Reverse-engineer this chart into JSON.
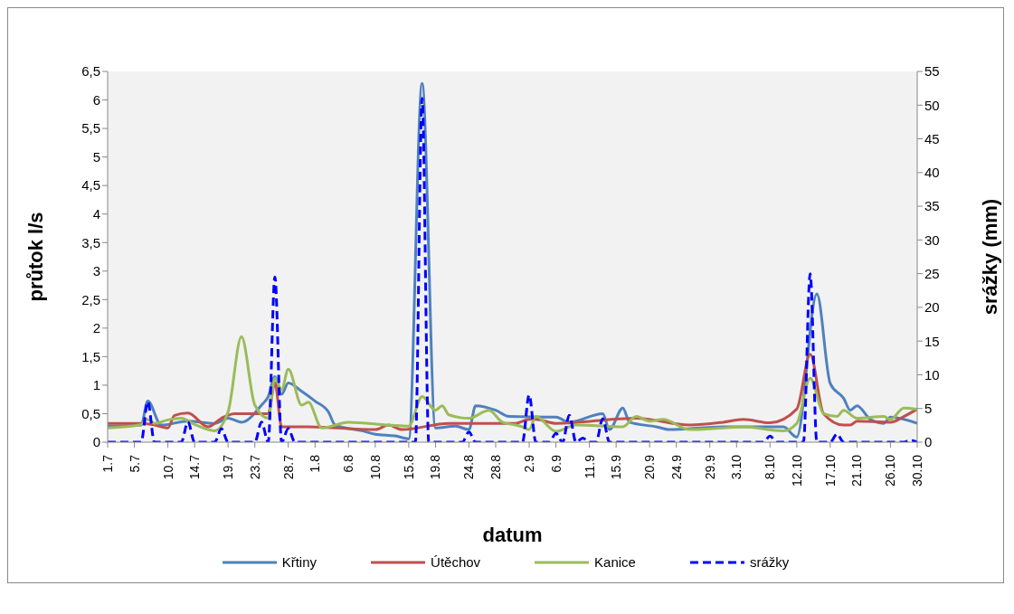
{
  "chart_data": {
    "type": "line",
    "xlabel": "datum",
    "ylabel": "průtok l/s",
    "y2label": "srážky (mm)",
    "legend": "bottom",
    "xlim": [
      "--07-01",
      "--10-30"
    ],
    "xticks": [
      {
        "value": "--07-01",
        "label": "1.7"
      },
      {
        "value": "--07-05",
        "label": "5.7"
      },
      {
        "value": "--07-10",
        "label": "10.7"
      },
      {
        "value": "--07-14",
        "label": "14.7"
      },
      {
        "value": "--07-19",
        "label": "19.7"
      },
      {
        "value": "--07-23",
        "label": "23.7"
      },
      {
        "value": "--07-28",
        "label": "28.7"
      },
      {
        "value": "--08-01",
        "label": "1.8"
      },
      {
        "value": "--08-06",
        "label": "6.8"
      },
      {
        "value": "--08-10",
        "label": "10.8"
      },
      {
        "value": "--08-15",
        "label": "15.8"
      },
      {
        "value": "--08-19",
        "label": "19.8"
      },
      {
        "value": "--08-24",
        "label": "24.8"
      },
      {
        "value": "--08-28",
        "label": "28.8"
      },
      {
        "value": "--09-02",
        "label": "2.9"
      },
      {
        "value": "--09-06",
        "label": "6.9"
      },
      {
        "value": "--09-11",
        "label": "11.9"
      },
      {
        "value": "--09-15",
        "label": "15.9"
      },
      {
        "value": "--09-20",
        "label": "20.9"
      },
      {
        "value": "--09-24",
        "label": "24.9"
      },
      {
        "value": "--09-29",
        "label": "29.9"
      },
      {
        "value": "--10-03",
        "label": "3.10"
      },
      {
        "value": "--10-08",
        "label": "8.10"
      },
      {
        "value": "--10-12",
        "label": "12.10"
      },
      {
        "value": "--10-17",
        "label": "17.10"
      },
      {
        "value": "--10-21",
        "label": "21.10"
      },
      {
        "value": "--10-26",
        "label": "26.10"
      },
      {
        "value": "--10-30",
        "label": "30.10"
      }
    ],
    "ylim": [
      0,
      6.5
    ],
    "yticks": [
      0,
      {
        "value": 0.5,
        "label": "0,5"
      },
      1,
      {
        "value": 1.5,
        "label": "1,5"
      },
      2,
      {
        "value": 2.5,
        "label": "2,5"
      },
      3,
      {
        "value": 3.5,
        "label": "3,5"
      },
      4,
      {
        "value": 4.5,
        "label": "4,5"
      },
      5,
      {
        "value": 5.5,
        "label": "5,5"
      },
      6,
      {
        "value": 6.5,
        "label": "6,5"
      }
    ],
    "y2lim": [
      0,
      55
    ],
    "y2ticks": [
      0,
      5,
      10,
      15,
      20,
      25,
      30,
      35,
      40,
      45,
      50,
      55
    ],
    "series": [
      {
        "name": "Křtiny",
        "color": "#4f81bd",
        "line_style": "solid",
        "x": [
          "--07-01",
          "--07-06",
          "--07-07",
          "--07-09",
          "--07-13",
          "--07-17",
          "--07-19",
          "--07-21",
          "--07-24",
          "--07-25",
          "--07-26",
          "--07-27",
          "--07-28",
          "--07-30",
          "--08-01",
          "--08-03",
          "--08-04",
          "--08-08",
          "--08-10",
          "--08-13",
          "--08-15",
          "--08-17",
          "--08-19",
          "--08-22",
          "--08-24",
          "--08-25",
          "--08-28",
          "--08-30",
          "--09-06",
          "--09-08",
          "--09-13",
          "--09-14",
          "--09-16",
          "--09-17",
          "--09-21",
          "--09-23",
          "--10-01",
          "--10-10",
          "--10-12",
          "--10-15",
          "--10-17",
          "--10-19",
          "--10-20",
          "--10-21",
          "--10-23",
          "--10-25",
          "--10-26",
          "--10-30"
        ],
        "values": [
          0.28,
          0.3,
          0.72,
          0.3,
          0.37,
          0.33,
          0.42,
          0.35,
          0.65,
          0.8,
          1.15,
          0.84,
          1.04,
          0.89,
          0.72,
          0.53,
          0.3,
          0.2,
          0.14,
          0.11,
          0.06,
          6.29,
          0.25,
          0.28,
          0.22,
          0.64,
          0.56,
          0.45,
          0.44,
          0.35,
          0.5,
          0.22,
          0.6,
          0.35,
          0.27,
          0.22,
          0.27,
          0.27,
          0.09,
          2.6,
          1.03,
          0.77,
          0.56,
          0.64,
          0.4,
          0.33,
          0.44,
          0.33
        ]
      },
      {
        "name": "Útěchov",
        "color": "#c0504d",
        "line_style": "solid",
        "x": [
          "--07-01",
          "--07-06",
          "--07-08",
          "--07-10",
          "--07-11",
          "--07-13",
          "--07-16",
          "--07-18",
          "--07-20",
          "--07-23",
          "--07-25",
          "--07-26",
          "--07-27",
          "--07-31",
          "--08-10",
          "--08-12",
          "--08-14",
          "--08-21",
          "--08-31",
          "--09-02",
          "--09-03",
          "--09-06",
          "--09-18",
          "--09-26",
          "--10-01",
          "--10-04",
          "--10-08",
          "--10-12",
          "--10-14",
          "--10-16",
          "--10-19",
          "--10-20",
          "--10-21",
          "--10-26",
          "--10-28",
          "--10-30"
        ],
        "values": [
          0.33,
          0.33,
          0.3,
          0.25,
          0.47,
          0.51,
          0.27,
          0.42,
          0.5,
          0.5,
          0.5,
          1.04,
          0.27,
          0.27,
          0.22,
          0.3,
          0.22,
          0.33,
          0.33,
          0.4,
          0.4,
          0.33,
          0.42,
          0.3,
          0.35,
          0.4,
          0.34,
          0.58,
          1.54,
          0.5,
          0.3,
          0.3,
          0.37,
          0.35,
          0.45,
          0.58
        ]
      },
      {
        "name": "Kanice",
        "color": "#9bbb59",
        "line_style": "solid",
        "x": [
          "--07-01",
          "--07-06",
          "--07-07",
          "--07-08",
          "--07-10",
          "--07-12",
          "--07-14",
          "--07-17",
          "--07-19",
          "--07-21",
          "--07-23",
          "--07-25",
          "--07-26",
          "--07-27",
          "--07-28",
          "--07-30",
          "--07-31",
          "--08-02",
          "--08-06",
          "--08-12",
          "--08-15",
          "--08-17",
          "--08-19",
          "--08-20",
          "--08-21",
          "--08-24",
          "--08-27",
          "--08-29",
          "--08-31",
          "--09-01",
          "--09-02",
          "--09-03",
          "--09-06",
          "--09-09",
          "--09-16",
          "--09-18",
          "--09-20",
          "--09-22",
          "--09-26",
          "--10-01",
          "--10-04",
          "--10-10",
          "--10-12",
          "--10-14",
          "--10-16",
          "--10-18",
          "--10-19",
          "--10-21",
          "--10-25",
          "--10-26",
          "--10-28",
          "--10-30"
        ],
        "values": [
          0.25,
          0.31,
          0.4,
          0.33,
          0.39,
          0.42,
          0.31,
          0.2,
          0.53,
          1.85,
          0.65,
          0.42,
          1.12,
          0.92,
          1.28,
          0.65,
          0.7,
          0.25,
          0.35,
          0.3,
          0.28,
          0.8,
          0.56,
          0.64,
          0.48,
          0.42,
          0.56,
          0.35,
          0.3,
          0.27,
          0.22,
          0.45,
          0.19,
          0.3,
          0.27,
          0.45,
          0.37,
          0.4,
          0.22,
          0.25,
          0.27,
          0.2,
          0.33,
          1.12,
          0.5,
          0.45,
          0.56,
          0.42,
          0.45,
          0.4,
          0.6,
          0.58
        ]
      },
      {
        "name": "srážky",
        "color": "#0000ff",
        "line_style": "dashed",
        "axis": "y2",
        "x": [
          "--07-01",
          "--07-06",
          "--07-07",
          "--07-08",
          "--07-12",
          "--07-13",
          "--07-14",
          "--07-17",
          "--07-18",
          "--07-19",
          "--07-23",
          "--07-24",
          "--07-25",
          "--07-26",
          "--07-27",
          "--07-28",
          "--07-29",
          "--08-16",
          "--08-17",
          "--08-18",
          "--08-23",
          "--08-24",
          "--08-25",
          "--09-01",
          "--09-02",
          "--09-03",
          "--09-05",
          "--09-06",
          "--09-07",
          "--09-08",
          "--09-09",
          "--09-10",
          "--09-11",
          "--09-12",
          "--09-13",
          "--09-14",
          "--10-07",
          "--10-08",
          "--10-09",
          "--10-13",
          "--10-14",
          "--10-15",
          "--10-17",
          "--10-18",
          "--10-19",
          "--10-28",
          "--10-29",
          "--10-30"
        ],
        "values": [
          0,
          0,
          6,
          0,
          0,
          3,
          0,
          0,
          2,
          0,
          0,
          3,
          0,
          24.5,
          0,
          2,
          0,
          0,
          51,
          0,
          0,
          1.5,
          0,
          0,
          7,
          0,
          0,
          1.3,
          0,
          4,
          0,
          0.6,
          0,
          0,
          3.5,
          0,
          0,
          0.9,
          0,
          0,
          25,
          0,
          0,
          1.2,
          0,
          0,
          0.3,
          0
        ]
      }
    ]
  }
}
